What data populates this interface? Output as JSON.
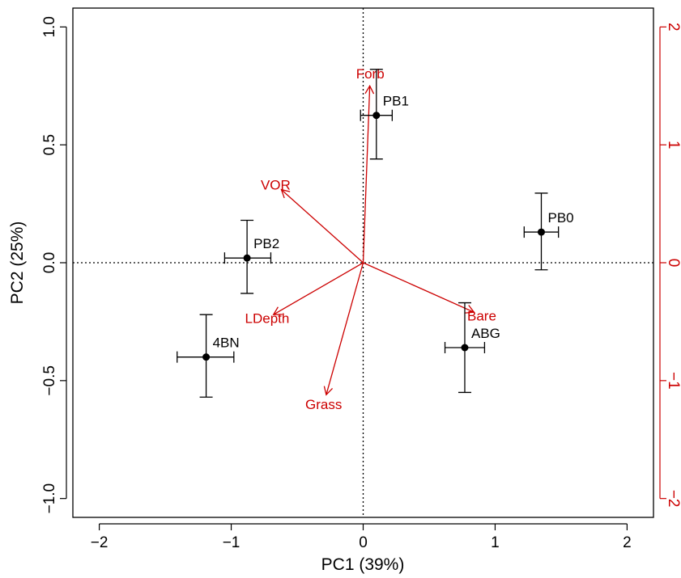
{
  "chart_data": {
    "type": "scatter",
    "subtype": "pca-biplot",
    "xlabel": "PC1 (39%)",
    "ylabel": "PC2 (25%)",
    "xlim": [
      -2.2,
      2.2
    ],
    "ylim": [
      -1.08,
      1.08
    ],
    "x_ticks": [
      -2,
      -1,
      0,
      1,
      2
    ],
    "x_tick_labels": [
      "−2",
      "−1",
      "0",
      "1",
      "2"
    ],
    "y_ticks": [
      -1.0,
      -0.5,
      0.0,
      0.5,
      1.0
    ],
    "y_tick_labels": [
      "−1.0",
      "−0.5",
      "0.0",
      "0.5",
      "1.0"
    ],
    "right_axis": {
      "color": "#cc0000",
      "lim": [
        -2.16,
        2.16
      ],
      "ticks": [
        -2,
        -1,
        0,
        1,
        2
      ],
      "tick_labels": [
        "−2",
        "−1",
        "0",
        "1",
        "2"
      ]
    },
    "reference_lines": {
      "x": 0,
      "y": 0,
      "style": "dotted"
    },
    "grid": false,
    "points": [
      {
        "label": "PB1",
        "x": 0.1,
        "y": 0.625,
        "x_lo": -0.02,
        "x_hi": 0.22,
        "y_lo": 0.44,
        "y_hi": 0.82
      },
      {
        "label": "PB0",
        "x": 1.35,
        "y": 0.13,
        "x_lo": 1.22,
        "x_hi": 1.48,
        "y_lo": -0.03,
        "y_hi": 0.295
      },
      {
        "label": "PB2",
        "x": -0.88,
        "y": 0.02,
        "x_lo": -1.05,
        "x_hi": -0.7,
        "y_lo": -0.13,
        "y_hi": 0.18
      },
      {
        "label": "4BN",
        "x": -1.19,
        "y": -0.4,
        "x_lo": -1.41,
        "x_hi": -0.98,
        "y_lo": -0.57,
        "y_hi": -0.22
      },
      {
        "label": "ABG",
        "x": 0.77,
        "y": -0.36,
        "x_lo": 0.62,
        "x_hi": 0.92,
        "y_lo": -0.55,
        "y_hi": -0.17
      }
    ],
    "loadings_color": "#cc0000",
    "loadings": [
      {
        "label": "Forb",
        "x": 0.05,
        "y": 0.75
      },
      {
        "label": "VOR",
        "x": -0.62,
        "y": 0.31
      },
      {
        "label": "LDepth",
        "x": -0.68,
        "y": -0.22
      },
      {
        "label": "Grass",
        "x": -0.28,
        "y": -0.56
      },
      {
        "label": "Bare",
        "x": 0.84,
        "y": -0.21
      }
    ]
  }
}
